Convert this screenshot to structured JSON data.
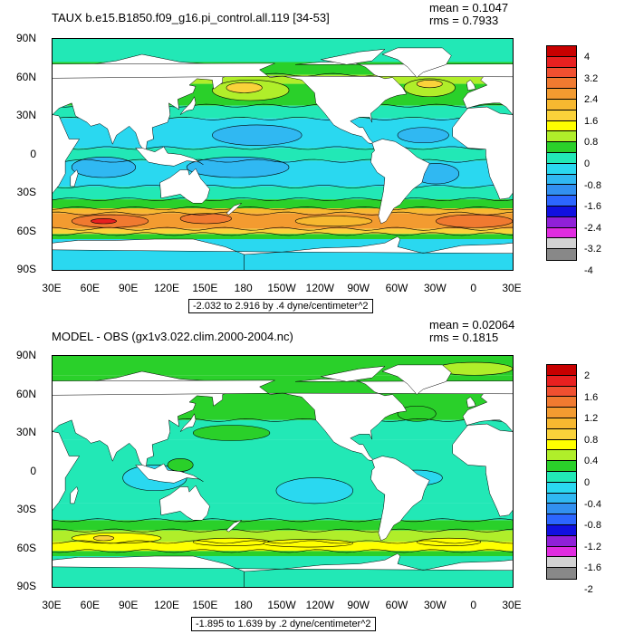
{
  "panels": [
    {
      "title": "TAUX b.e15.B1850.f09_g16.pi_control.all.119 [34-53]",
      "mean": "mean = 0.1047",
      "rms": "rms = 0.7933",
      "contour_note": "-2.032 to 2.916 by .4 dyne/centimeter^2",
      "legend": {
        "labels": [
          "4",
          "3.2",
          "2.4",
          "1.6",
          "0.8",
          "0",
          "-0.8",
          "-1.6",
          "-2.4",
          "-3.2",
          "-4"
        ],
        "colors": [
          "#c80000",
          "#e82020",
          "#f05030",
          "#f07a30",
          "#f39b30",
          "#f7b830",
          "#fad23a",
          "#ffff00",
          "#b0ee2a",
          "#2ad02a",
          "#22e8b6",
          "#2ad8f0",
          "#30b8f2",
          "#3290f0",
          "#2c66ff",
          "#1010e0",
          "#9020d8",
          "#e02ce0",
          "#d2d2d2",
          "#888888"
        ]
      },
      "field": "ctl"
    },
    {
      "title": "MODEL - OBS (gx1v3.022.clim.2000-2004.nc)",
      "mean": "mean = 0.02064",
      "rms": "rms = 0.1815",
      "contour_note": "-1.895 to 1.639 by .2 dyne/centimeter^2",
      "legend": {
        "labels": [
          "2",
          "1.6",
          "1.2",
          "0.8",
          "0.4",
          "0",
          "-0.4",
          "-0.8",
          "-1.2",
          "-1.6",
          "-2"
        ],
        "colors": [
          "#c80000",
          "#e82020",
          "#f05030",
          "#f07a30",
          "#f39b30",
          "#f7b830",
          "#fad23a",
          "#ffff00",
          "#b0ee2a",
          "#2ad02a",
          "#22e8b6",
          "#2ad8f0",
          "#30b8f2",
          "#3290f0",
          "#2c66ff",
          "#1010e0",
          "#9020d8",
          "#e02ce0",
          "#d2d2d2",
          "#888888"
        ]
      },
      "field": "diff"
    }
  ],
  "axes": {
    "lat_labels": [
      "90N",
      "60N",
      "30N",
      "0",
      "30S",
      "60S",
      "90S"
    ],
    "lon_labels": [
      "30E",
      "60E",
      "90E",
      "120E",
      "150E",
      "180",
      "150W",
      "120W",
      "90W",
      "60W",
      "30W",
      "0",
      "30E"
    ]
  },
  "land_color": "#ffffff"
}
